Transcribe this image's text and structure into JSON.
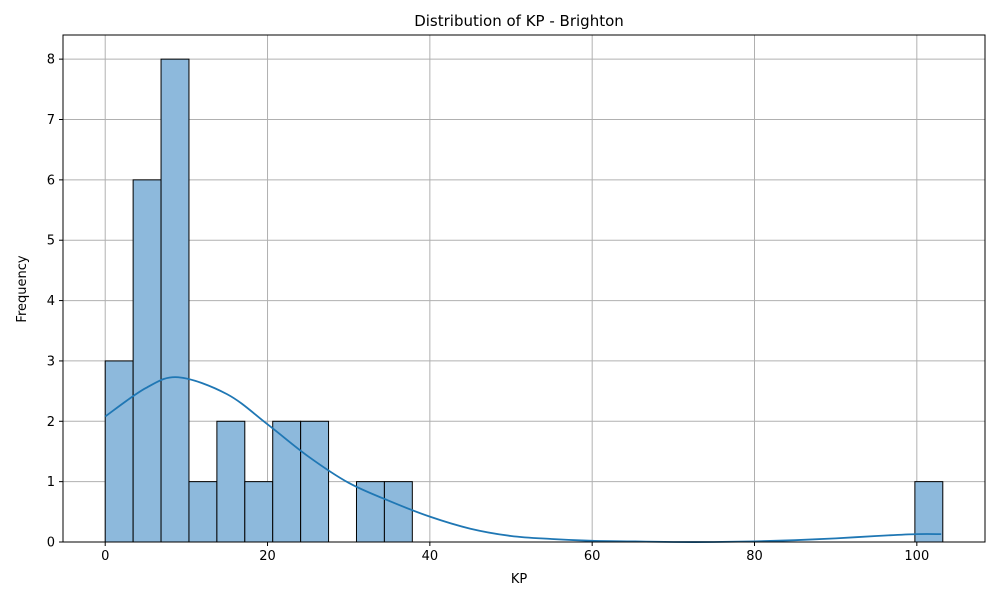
{
  "chart_data": {
    "type": "bar",
    "title": "Distribution of KP - Brighton",
    "xlabel": "KP",
    "ylabel": "Frequency",
    "bin_width": 3.44,
    "bins": [
      {
        "start": 0.0,
        "end": 3.44,
        "count": 3
      },
      {
        "start": 3.44,
        "end": 6.88,
        "count": 6
      },
      {
        "start": 6.88,
        "end": 10.32,
        "count": 8
      },
      {
        "start": 10.32,
        "end": 13.76,
        "count": 1
      },
      {
        "start": 13.76,
        "end": 17.2,
        "count": 2
      },
      {
        "start": 17.2,
        "end": 20.64,
        "count": 1
      },
      {
        "start": 20.64,
        "end": 24.08,
        "count": 2
      },
      {
        "start": 24.08,
        "end": 27.52,
        "count": 2
      },
      {
        "start": 27.52,
        "end": 30.96,
        "count": 0
      },
      {
        "start": 30.96,
        "end": 34.4,
        "count": 1
      },
      {
        "start": 34.4,
        "end": 37.84,
        "count": 1
      },
      {
        "start": 99.76,
        "end": 103.2,
        "count": 1
      }
    ],
    "xlim": [
      -5.2,
      108.4
    ],
    "ylim": [
      0,
      8.4
    ],
    "xticks": [
      0,
      20,
      40,
      60,
      80,
      100
    ],
    "yticks": [
      0,
      1,
      2,
      3,
      4,
      5,
      6,
      7,
      8
    ],
    "grid": true,
    "kde": {
      "x": [
        0,
        5,
        9,
        15,
        20,
        25,
        30,
        35,
        40,
        45,
        50,
        55,
        60,
        65,
        70,
        75,
        80,
        85,
        90,
        95,
        100,
        103
      ],
      "y": [
        2.08,
        2.55,
        2.73,
        2.45,
        1.95,
        1.42,
        0.98,
        0.68,
        0.42,
        0.22,
        0.1,
        0.05,
        0.02,
        0.01,
        0.0,
        0.0,
        0.01,
        0.03,
        0.06,
        0.1,
        0.13,
        0.13
      ]
    }
  },
  "colors": {
    "bar_fill": "#8db9dc",
    "kde_line": "#1f77b4"
  }
}
